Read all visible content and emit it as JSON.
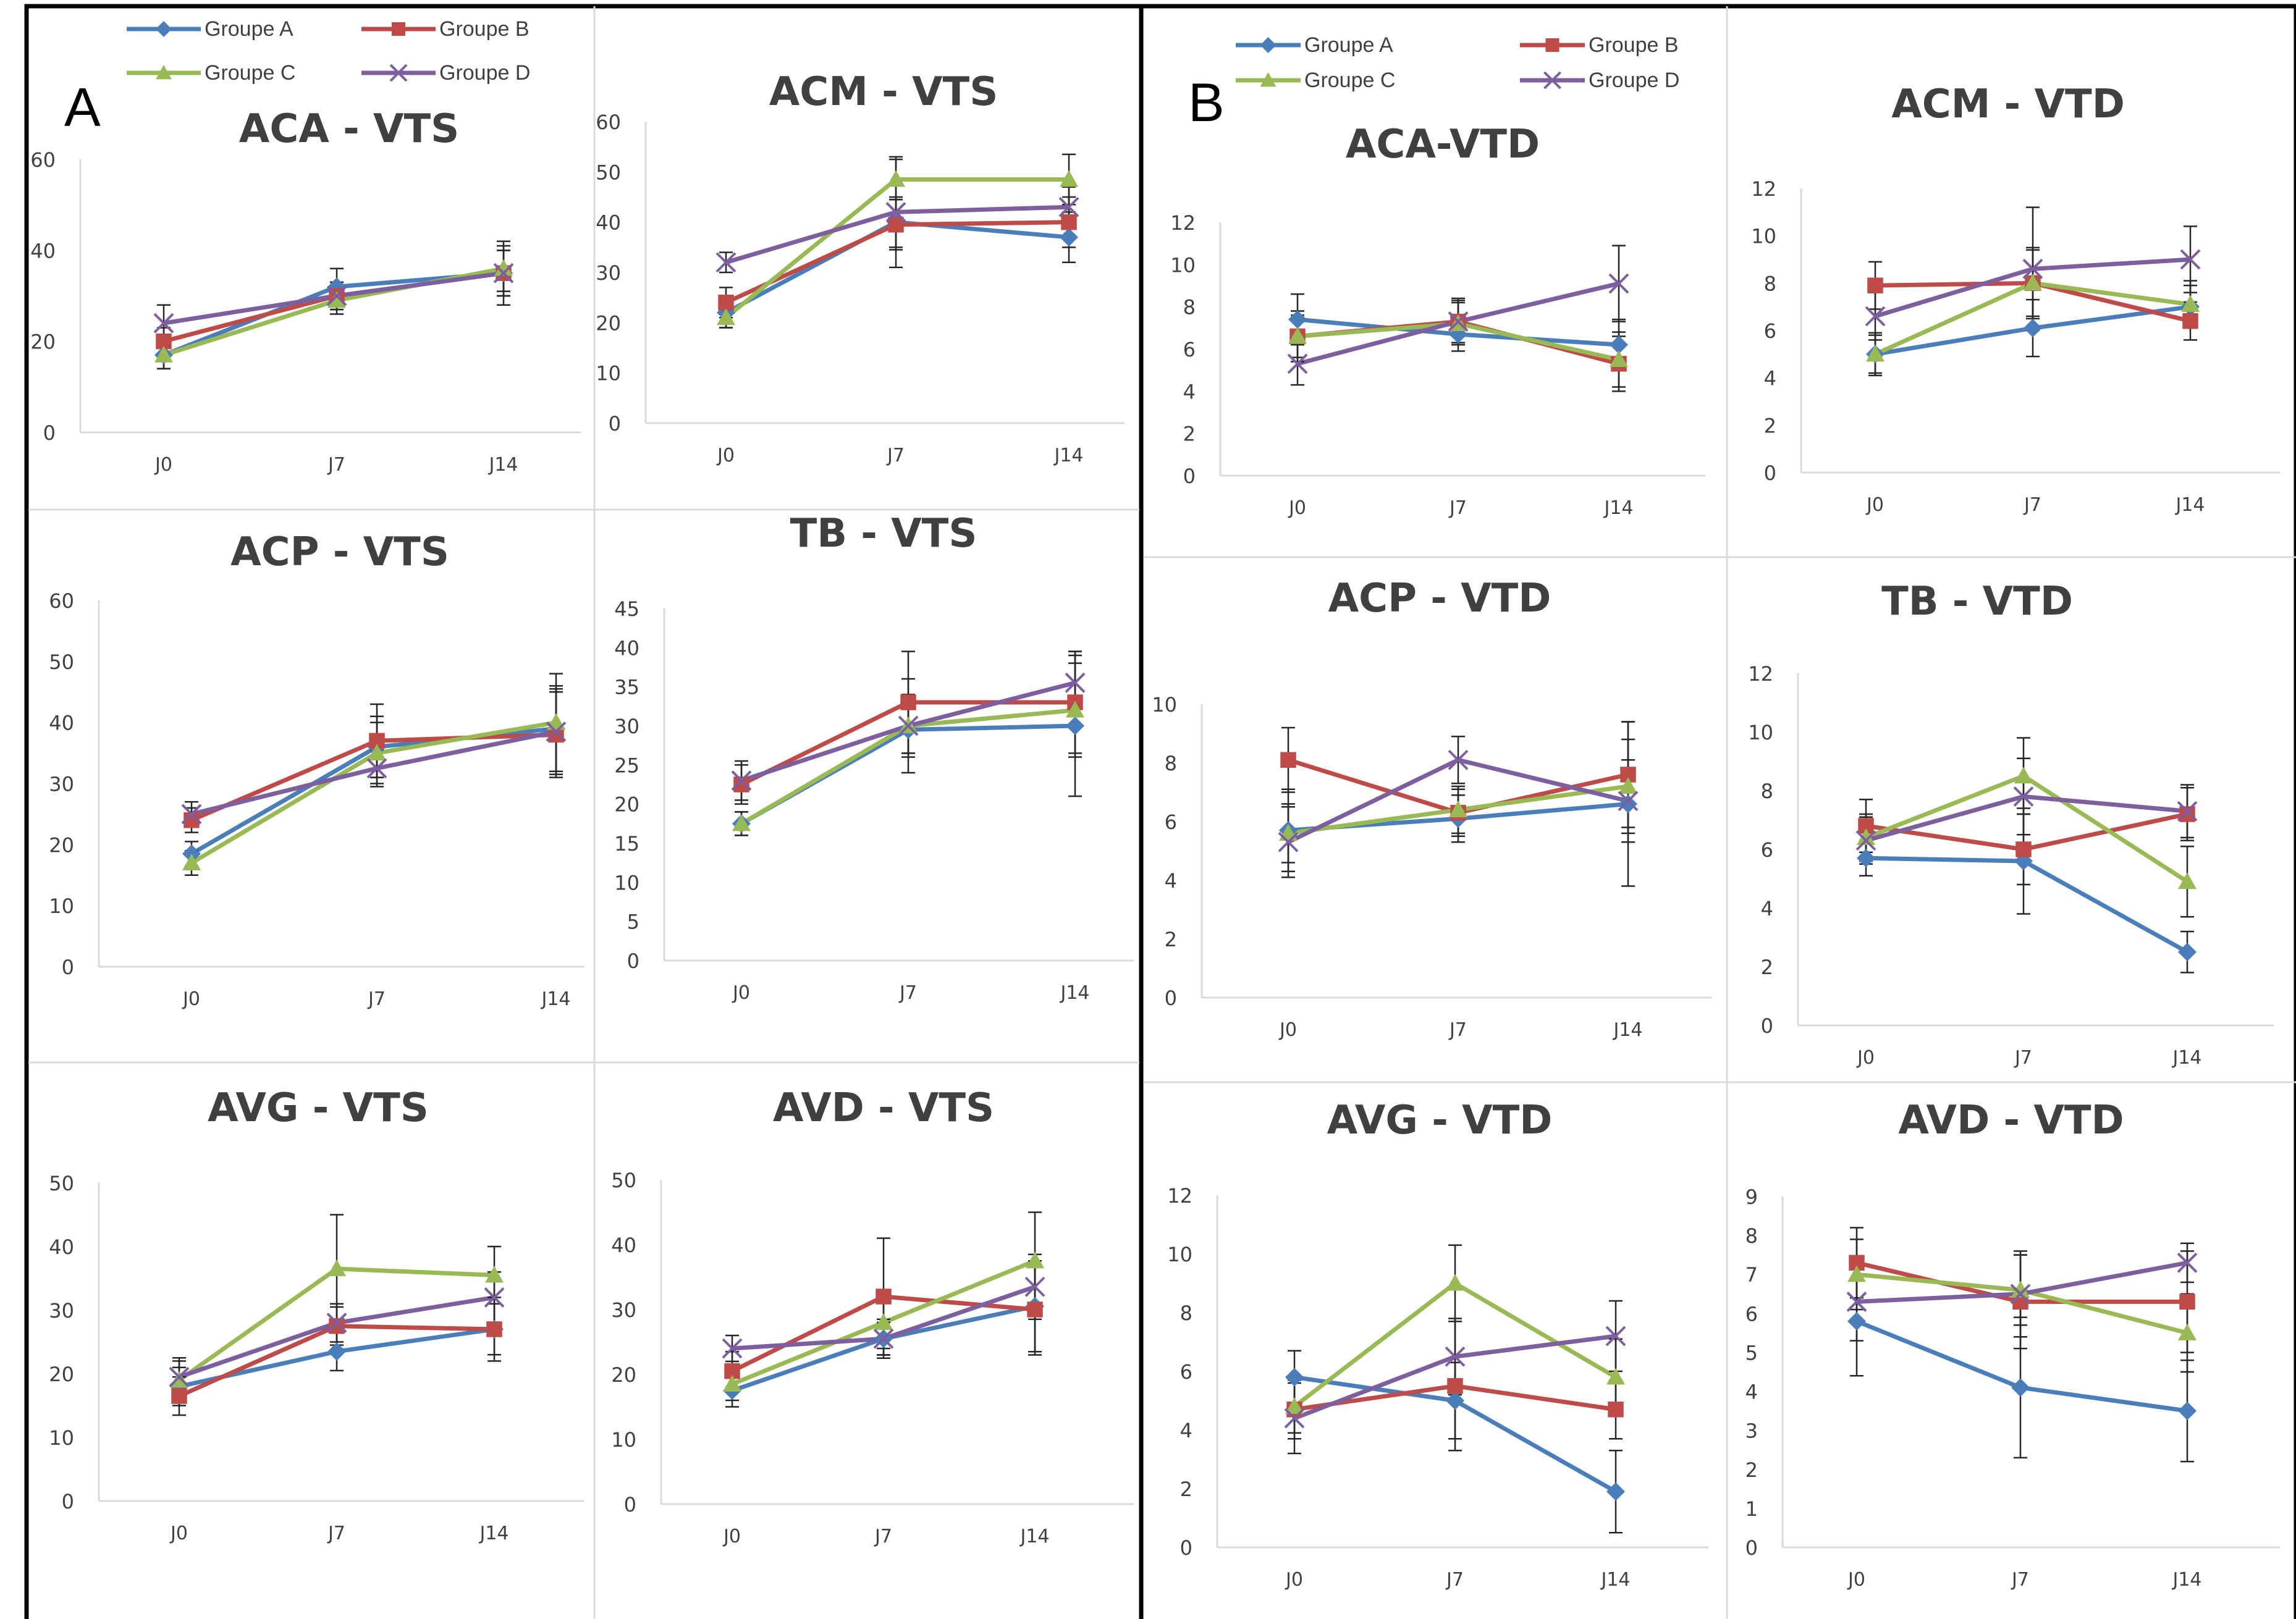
{
  "figure": {
    "panel_a_letter": "A",
    "panel_b_letter": "B"
  },
  "colors": {
    "Groupe A": "#4a7ebb",
    "Groupe B": "#be4b48",
    "Groupe C": "#98b954",
    "Groupe D": "#7d5fa0"
  },
  "markers": {
    "Groupe A": "diamond",
    "Groupe B": "square",
    "Groupe C": "triangle",
    "Groupe D": "x-cross"
  },
  "legend": {
    "items": [
      "Groupe A",
      "Groupe B",
      "Groupe C",
      "Groupe D"
    ]
  },
  "chart_data": [
    {
      "id": "aca-vts",
      "panel": "A",
      "type": "line",
      "title": "ACA - VTS",
      "categories": [
        "J0",
        "J7",
        "J14"
      ],
      "ylim": [
        0,
        60
      ],
      "yticks": [
        0,
        20,
        40,
        60
      ],
      "series": [
        {
          "name": "Groupe A",
          "values": [
            17,
            32,
            35
          ],
          "errors": [
            3,
            4,
            5
          ]
        },
        {
          "name": "Groupe B",
          "values": [
            20,
            30,
            35
          ],
          "errors": [
            3,
            3,
            5
          ]
        },
        {
          "name": "Groupe C",
          "values": [
            17,
            29,
            36
          ],
          "errors": [
            3,
            3,
            5
          ]
        },
        {
          "name": "Groupe D",
          "values": [
            24,
            30,
            35
          ],
          "errors": [
            4,
            3,
            7
          ]
        }
      ]
    },
    {
      "id": "acm-vts",
      "panel": "A",
      "type": "line",
      "title": "ACM - VTS",
      "categories": [
        "J0",
        "J7",
        "J14"
      ],
      "ylim": [
        0,
        60
      ],
      "yticks": [
        0,
        10,
        20,
        30,
        40,
        50,
        60
      ],
      "series": [
        {
          "name": "Groupe A",
          "values": [
            22,
            40,
            37
          ],
          "errors": [
            3,
            5,
            5
          ]
        },
        {
          "name": "Groupe B",
          "values": [
            24,
            39.5,
            40
          ],
          "errors": [
            3,
            5,
            5
          ]
        },
        {
          "name": "Groupe C",
          "values": [
            21,
            48.5,
            48.5
          ],
          "errors": [
            2,
            4,
            5
          ]
        },
        {
          "name": "Groupe D",
          "values": [
            32,
            42,
            43
          ],
          "errors": [
            2,
            11,
            4
          ]
        }
      ]
    },
    {
      "id": "acp-vts",
      "panel": "A",
      "type": "line",
      "title": "ACP - VTS",
      "categories": [
        "J0",
        "J7",
        "J14"
      ],
      "ylim": [
        0,
        60
      ],
      "yticks": [
        0,
        10,
        20,
        30,
        40,
        50,
        60
      ],
      "series": [
        {
          "name": "Groupe A",
          "values": [
            18.5,
            36,
            39
          ],
          "errors": [
            2,
            5,
            7
          ]
        },
        {
          "name": "Groupe B",
          "values": [
            24,
            37,
            38
          ],
          "errors": [
            2,
            6,
            7
          ]
        },
        {
          "name": "Groupe C",
          "values": [
            17,
            35,
            40
          ],
          "errors": [
            2,
            5,
            8
          ]
        },
        {
          "name": "Groupe D",
          "values": [
            25,
            32.5,
            38.5
          ],
          "errors": [
            2,
            3,
            7
          ]
        }
      ]
    },
    {
      "id": "tb-vts",
      "panel": "A",
      "type": "line",
      "title": "TB - VTS",
      "categories": [
        "J0",
        "J7",
        "J14"
      ],
      "ylim": [
        0,
        45
      ],
      "yticks": [
        0,
        5,
        10,
        15,
        20,
        25,
        30,
        35,
        40,
        45
      ],
      "series": [
        {
          "name": "Groupe A",
          "values": [
            17.5,
            29.5,
            30
          ],
          "errors": [
            1.5,
            3,
            9
          ]
        },
        {
          "name": "Groupe B",
          "values": [
            22.5,
            33,
            33
          ],
          "errors": [
            2.5,
            6.5,
            6.5
          ]
        },
        {
          "name": "Groupe C",
          "values": [
            17.5,
            30,
            32
          ],
          "errors": [
            1.5,
            4,
            6
          ]
        },
        {
          "name": "Groupe D",
          "values": [
            23,
            30,
            35.5
          ],
          "errors": [
            2.5,
            6,
            4
          ]
        }
      ]
    },
    {
      "id": "avg-vts",
      "panel": "A",
      "type": "line",
      "title": "AVG - VTS",
      "categories": [
        "J0",
        "J7",
        "J14"
      ],
      "ylim": [
        0,
        50
      ],
      "yticks": [
        0,
        10,
        20,
        30,
        40,
        50
      ],
      "series": [
        {
          "name": "Groupe A",
          "values": [
            18,
            23.5,
            27
          ],
          "errors": [
            3,
            3,
            4
          ]
        },
        {
          "name": "Groupe B",
          "values": [
            16.5,
            27.5,
            27
          ],
          "errors": [
            3,
            3,
            5
          ]
        },
        {
          "name": "Groupe C",
          "values": [
            19,
            36.5,
            35.5
          ],
          "errors": [
            3,
            8.5,
            4.5
          ]
        },
        {
          "name": "Groupe D",
          "values": [
            19.5,
            28,
            32
          ],
          "errors": [
            3,
            3,
            4
          ]
        }
      ]
    },
    {
      "id": "avd-vts",
      "panel": "A",
      "type": "line",
      "title": "AVD - VTS",
      "categories": [
        "J0",
        "J7",
        "J14"
      ],
      "ylim": [
        0,
        50
      ],
      "yticks": [
        0,
        10,
        20,
        30,
        40,
        50
      ],
      "series": [
        {
          "name": "Groupe A",
          "values": [
            17.5,
            25.5,
            30.5
          ],
          "errors": [
            2.5,
            2.5,
            7
          ]
        },
        {
          "name": "Groupe B",
          "values": [
            20.5,
            32,
            30
          ],
          "errors": [
            3,
            9,
            7
          ]
        },
        {
          "name": "Groupe C",
          "values": [
            18.5,
            28,
            37.5
          ],
          "errors": [
            2.5,
            4,
            7.5
          ]
        },
        {
          "name": "Groupe D",
          "values": [
            24,
            25.5,
            33.5
          ],
          "errors": [
            2,
            3,
            5
          ]
        }
      ]
    },
    {
      "id": "aca-vtd",
      "panel": "B",
      "type": "line",
      "title": "ACA-VTD",
      "categories": [
        "J0",
        "J7",
        "J14"
      ],
      "ylim": [
        0,
        12
      ],
      "yticks": [
        0,
        2,
        4,
        6,
        8,
        10,
        12
      ],
      "series": [
        {
          "name": "Groupe A",
          "values": [
            7.4,
            6.7,
            6.2
          ],
          "errors": [
            1.2,
            0.8,
            1.2
          ]
        },
        {
          "name": "Groupe B",
          "values": [
            6.6,
            7.3,
            5.3
          ],
          "errors": [
            1.2,
            1.0,
            1.3
          ]
        },
        {
          "name": "Groupe C",
          "values": [
            6.6,
            7.2,
            5.5
          ],
          "errors": [
            1.0,
            1.0,
            1.3
          ]
        },
        {
          "name": "Groupe D",
          "values": [
            5.3,
            7.3,
            9.1
          ],
          "errors": [
            1.0,
            1.1,
            1.8
          ]
        }
      ]
    },
    {
      "id": "acm-vtd",
      "panel": "B",
      "type": "line",
      "title": "ACM - VTD",
      "categories": [
        "J0",
        "J7",
        "J14"
      ],
      "ylim": [
        0,
        12
      ],
      "yticks": [
        0,
        2,
        4,
        6,
        8,
        10,
        12
      ],
      "series": [
        {
          "name": "Groupe A",
          "values": [
            5.0,
            6.1,
            7.0
          ],
          "errors": [
            0.9,
            1.2,
            0.9
          ]
        },
        {
          "name": "Groupe B",
          "values": [
            7.9,
            8.0,
            6.4
          ],
          "errors": [
            1.0,
            1.5,
            0.8
          ]
        },
        {
          "name": "Groupe C",
          "values": [
            5.0,
            8.0,
            7.1
          ],
          "errors": [
            0.8,
            1.4,
            1.0
          ]
        },
        {
          "name": "Groupe D",
          "values": [
            6.6,
            8.6,
            9.0
          ],
          "errors": [
            1.0,
            2.6,
            1.4
          ]
        }
      ]
    },
    {
      "id": "acp-vtd",
      "panel": "B",
      "type": "line",
      "title": "ACP - VTD",
      "categories": [
        "J0",
        "J7",
        "J14"
      ],
      "ylim": [
        0,
        10
      ],
      "yticks": [
        0,
        2,
        4,
        6,
        8,
        10
      ],
      "series": [
        {
          "name": "Groupe A",
          "values": [
            5.7,
            6.1,
            6.6
          ],
          "errors": [
            1.4,
            0.8,
            2.8
          ]
        },
        {
          "name": "Groupe B",
          "values": [
            8.1,
            6.3,
            7.6
          ],
          "errors": [
            1.1,
            0.8,
            1.8
          ]
        },
        {
          "name": "Groupe C",
          "values": [
            5.6,
            6.4,
            7.2
          ],
          "errors": [
            1.0,
            0.8,
            1.6
          ]
        },
        {
          "name": "Groupe D",
          "values": [
            5.3,
            8.1,
            6.7
          ],
          "errors": [
            1.2,
            0.8,
            1.4
          ]
        }
      ]
    },
    {
      "id": "tb-vtd",
      "panel": "B",
      "type": "line",
      "title": "TB - VTD",
      "categories": [
        "J0",
        "J7",
        "J14"
      ],
      "ylim": [
        0,
        12
      ],
      "yticks": [
        0,
        2,
        4,
        6,
        8,
        10,
        12
      ],
      "series": [
        {
          "name": "Groupe A",
          "values": [
            5.7,
            5.6,
            2.5
          ],
          "errors": [
            0.6,
            1.8,
            0.7
          ]
        },
        {
          "name": "Groupe B",
          "values": [
            6.8,
            6.0,
            7.2
          ],
          "errors": [
            0.9,
            1.2,
            0.9
          ]
        },
        {
          "name": "Groupe C",
          "values": [
            6.4,
            8.5,
            4.9
          ],
          "errors": [
            0.8,
            1.3,
            1.2
          ]
        },
        {
          "name": "Groupe D",
          "values": [
            6.3,
            7.8,
            7.3
          ],
          "errors": [
            0.8,
            1.3,
            0.9
          ]
        }
      ]
    },
    {
      "id": "avg-vtd",
      "panel": "B",
      "type": "line",
      "title": "AVG - VTD",
      "categories": [
        "J0",
        "J7",
        "J14"
      ],
      "ylim": [
        0,
        12
      ],
      "yticks": [
        0,
        2,
        4,
        6,
        8,
        10,
        12
      ],
      "series": [
        {
          "name": "Groupe A",
          "values": [
            5.8,
            5.0,
            1.9
          ],
          "errors": [
            0.9,
            1.3,
            1.4
          ]
        },
        {
          "name": "Groupe B",
          "values": [
            4.7,
            5.5,
            4.7
          ],
          "errors": [
            1.0,
            2.2,
            1.0
          ]
        },
        {
          "name": "Groupe C",
          "values": [
            4.8,
            9.0,
            5.8
          ],
          "errors": [
            0.9,
            1.3,
            1.3
          ]
        },
        {
          "name": "Groupe D",
          "values": [
            4.4,
            6.5,
            7.2
          ],
          "errors": [
            1.2,
            1.3,
            1.2
          ]
        }
      ]
    },
    {
      "id": "avd-vtd",
      "panel": "B",
      "type": "line",
      "title": "AVD - VTD",
      "categories": [
        "J0",
        "J7",
        "J14"
      ],
      "ylim": [
        0,
        9
      ],
      "yticks": [
        0,
        1,
        2,
        3,
        4,
        5,
        6,
        7,
        8,
        9
      ],
      "series": [
        {
          "name": "Groupe A",
          "values": [
            5.8,
            4.1,
            3.5
          ],
          "errors": [
            1.4,
            1.8,
            1.3
          ]
        },
        {
          "name": "Groupe B",
          "values": [
            7.3,
            6.3,
            6.3
          ],
          "errors": [
            0.9,
            1.2,
            1.3
          ]
        },
        {
          "name": "Groupe C",
          "values": [
            7.0,
            6.6,
            5.5
          ],
          "errors": [
            0.9,
            0.9,
            1.0
          ]
        },
        {
          "name": "Groupe D",
          "values": [
            6.3,
            6.5,
            7.3
          ],
          "errors": [
            1.0,
            1.1,
            0.5
          ]
        }
      ]
    }
  ]
}
